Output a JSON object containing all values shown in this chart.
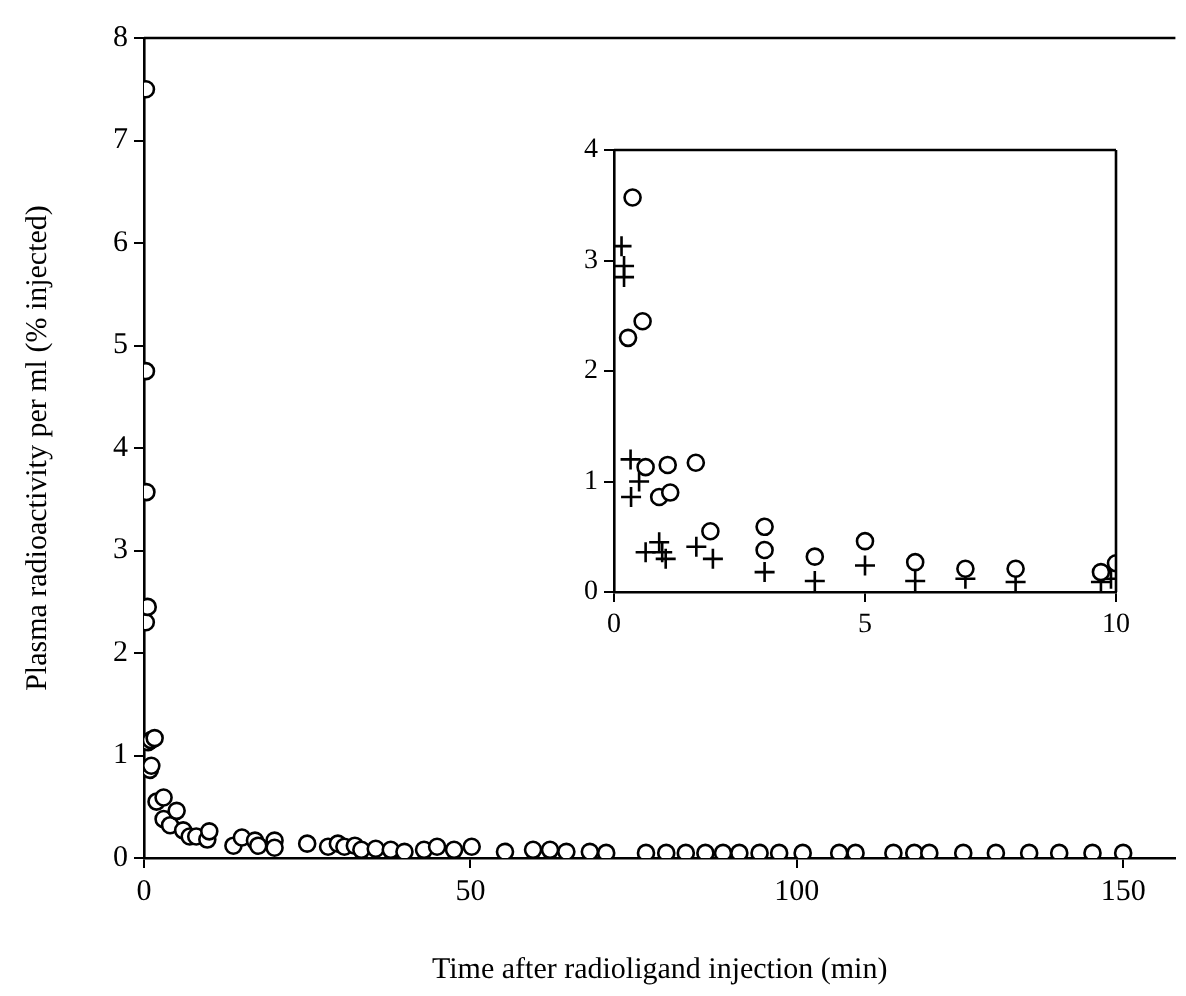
{
  "chart_data": [
    {
      "type": "scatter",
      "xlabel": "Time after radioligand injection (min)",
      "ylabel": "Plasma radioactivity per ml (% injected)",
      "xlim": [
        0,
        158
      ],
      "ylim": [
        0,
        8
      ],
      "xticks": [
        0,
        50,
        100,
        150
      ],
      "yticks": [
        0,
        1,
        2,
        3,
        4,
        5,
        6,
        7,
        8
      ],
      "marker": "circle",
      "series": [
        {
          "color": "#000000",
          "x": [
            0.3,
            0.3,
            0.37,
            0.28,
            0.57,
            0.63,
            1.07,
            1.63,
            0.9,
            1.12,
            1.92,
            3,
            3,
            4,
            5,
            6,
            7,
            8,
            9.7,
            10,
            13.7,
            15,
            17,
            17.5,
            20,
            20,
            25,
            28.2,
            29.7,
            30.7,
            32.3,
            33.3,
            35.5,
            37.8,
            39.9,
            42.9,
            44.9,
            47.5,
            50.2,
            55.3,
            59.6,
            62.2,
            64.7,
            68.3,
            70.8,
            76.9,
            80,
            83,
            86,
            88.7,
            91.2,
            94.3,
            97.3,
            100.9,
            106.5,
            109,
            114.8,
            118,
            120.3,
            125.5,
            130.5,
            135.6,
            140.2,
            145.3,
            150
          ],
          "values": [
            7.5,
            4.75,
            3.57,
            2.3,
            2.45,
            1.13,
            1.15,
            1.17,
            0.86,
            0.9,
            0.55,
            0.59,
            0.38,
            0.32,
            0.46,
            0.27,
            0.21,
            0.21,
            0.18,
            0.26,
            0.12,
            0.2,
            0.17,
            0.12,
            0.17,
            0.1,
            0.14,
            0.11,
            0.14,
            0.11,
            0.12,
            0.08,
            0.09,
            0.08,
            0.06,
            0.08,
            0.11,
            0.08,
            0.11,
            0.06,
            0.08,
            0.08,
            0.06,
            0.06,
            0.05,
            0.05,
            0.05,
            0.05,
            0.05,
            0.05,
            0.05,
            0.05,
            0.05,
            0.05,
            0.05,
            0.05,
            0.05,
            0.05,
            0.05,
            0.05,
            0.05,
            0.05,
            0.05,
            0.05,
            0.05
          ]
        }
      ]
    },
    {
      "type": "scatter",
      "xlim": [
        0,
        10
      ],
      "ylim": [
        0,
        4
      ],
      "xticks": [
        0,
        5,
        10
      ],
      "yticks": [
        0,
        1,
        2,
        3,
        4
      ],
      "series": [
        {
          "color": "#000000",
          "marker": "circle",
          "x": [
            0.37,
            0.28,
            0.57,
            0.63,
            1.07,
            1.63,
            0.9,
            1.12,
            1.92,
            3,
            3,
            4,
            5,
            6,
            7,
            8,
            9.7,
            10
          ],
          "values": [
            3.57,
            2.3,
            2.45,
            1.13,
            1.15,
            1.17,
            0.86,
            0.9,
            0.55,
            0.59,
            0.38,
            0.32,
            0.46,
            0.27,
            0.21,
            0.21,
            0.18,
            0.26
          ]
        },
        {
          "color": "#000000",
          "marker": "cross",
          "x": [
            0.15,
            0.2,
            0.2,
            0.33,
            0.34,
            0.5,
            0.63,
            0.9,
            0.96,
            1.03,
            1.64,
            1.97,
            3,
            4,
            5,
            6,
            7,
            8,
            9.7,
            9.9
          ],
          "values": [
            3.13,
            2.95,
            2.85,
            1.2,
            0.86,
            1.0,
            0.36,
            0.45,
            0.36,
            0.3,
            0.41,
            0.3,
            0.18,
            0.1,
            0.24,
            0.1,
            0.12,
            0.09,
            0.09,
            0.12
          ]
        }
      ]
    }
  ]
}
